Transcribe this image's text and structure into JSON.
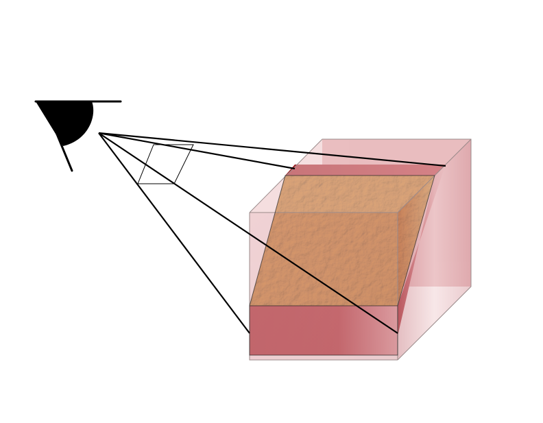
{
  "diagram": {
    "description_visible_text": "",
    "colors": {
      "background": "#ffffff",
      "eye": "#000000",
      "sight_lines": "#000000",
      "cube_face_light": "#e9b7ba",
      "cube_face_mid": "#dca6aa",
      "cube_edge": "#9a8a8a",
      "slab_red_dark": "#9b141b",
      "slab_red_light": "#d98f94",
      "rock_texture_base": "#c98f2c",
      "rock_texture_light": "#e4b44f"
    },
    "icons": {
      "eye": "eye-icon"
    }
  }
}
